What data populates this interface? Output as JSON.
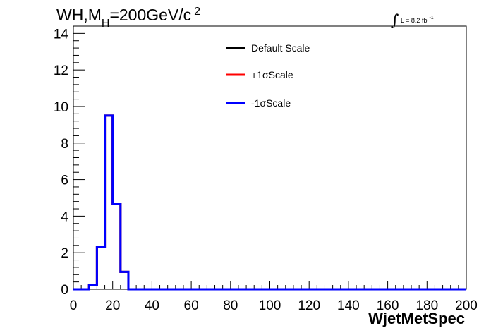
{
  "chart_data": {
    "type": "line",
    "title": {
      "prefix": "WH,M",
      "subscript": "H",
      "value": "=200GeV/c",
      "superscript": "2"
    },
    "lumi_label": {
      "integral": "∫",
      "text": "L = 8.2 fb",
      "superscript": "-1"
    },
    "xlabel": "WjetMetSpec",
    "ylabel": "",
    "xlim": [
      0,
      200
    ],
    "ylim": [
      0,
      14.4
    ],
    "xticks": [
      0,
      20,
      40,
      60,
      80,
      100,
      120,
      140,
      160,
      180,
      200
    ],
    "yticks": [
      0,
      2,
      4,
      6,
      8,
      10,
      12,
      14
    ],
    "bin_edges": [
      0,
      4,
      8,
      12,
      16,
      20,
      24,
      28,
      32,
      36,
      40,
      44,
      48,
      52,
      56,
      60,
      64,
      68,
      72,
      76,
      80,
      84,
      88,
      92,
      96,
      100,
      104,
      108,
      112,
      116,
      120,
      124,
      128,
      132,
      136,
      140,
      144,
      148,
      152,
      156,
      160,
      164,
      168,
      172,
      176,
      180,
      184,
      188,
      192,
      196,
      200
    ],
    "series": [
      {
        "name": "Default Scale",
        "color": "#000000",
        "values": [
          0,
          0,
          0.25,
          2.3,
          9.5,
          4.65,
          0.95,
          0,
          0,
          0,
          0,
          0,
          0,
          0,
          0,
          0,
          0,
          0,
          0,
          0,
          0,
          0,
          0,
          0,
          0,
          0,
          0,
          0,
          0,
          0,
          0,
          0,
          0,
          0,
          0,
          0,
          0,
          0,
          0,
          0,
          0,
          0,
          0,
          0,
          0,
          0,
          0,
          0,
          0,
          0
        ]
      },
      {
        "name": "+1σScale",
        "color": "#ff0000",
        "values": [
          0,
          0,
          0.25,
          2.3,
          9.5,
          4.65,
          0.95,
          0,
          0,
          0,
          0,
          0,
          0,
          0,
          0,
          0,
          0,
          0,
          0,
          0,
          0,
          0,
          0,
          0,
          0,
          0,
          0,
          0,
          0,
          0,
          0,
          0,
          0,
          0,
          0,
          0,
          0,
          0,
          0,
          0,
          0,
          0,
          0,
          0,
          0,
          0,
          0,
          0,
          0,
          0
        ]
      },
      {
        "name": "-1σScale",
        "color": "#0000ff",
        "values": [
          0,
          0,
          0.25,
          2.3,
          9.5,
          4.65,
          0.95,
          0,
          0,
          0,
          0,
          0,
          0,
          0,
          0,
          0,
          0,
          0,
          0,
          0,
          0,
          0,
          0,
          0,
          0,
          0,
          0,
          0,
          0,
          0,
          0,
          0,
          0,
          0,
          0,
          0,
          0,
          0,
          0,
          0,
          0,
          0,
          0,
          0,
          0,
          0,
          0,
          0,
          0,
          0
        ]
      }
    ],
    "legend_position": "top-center",
    "grid": false
  }
}
